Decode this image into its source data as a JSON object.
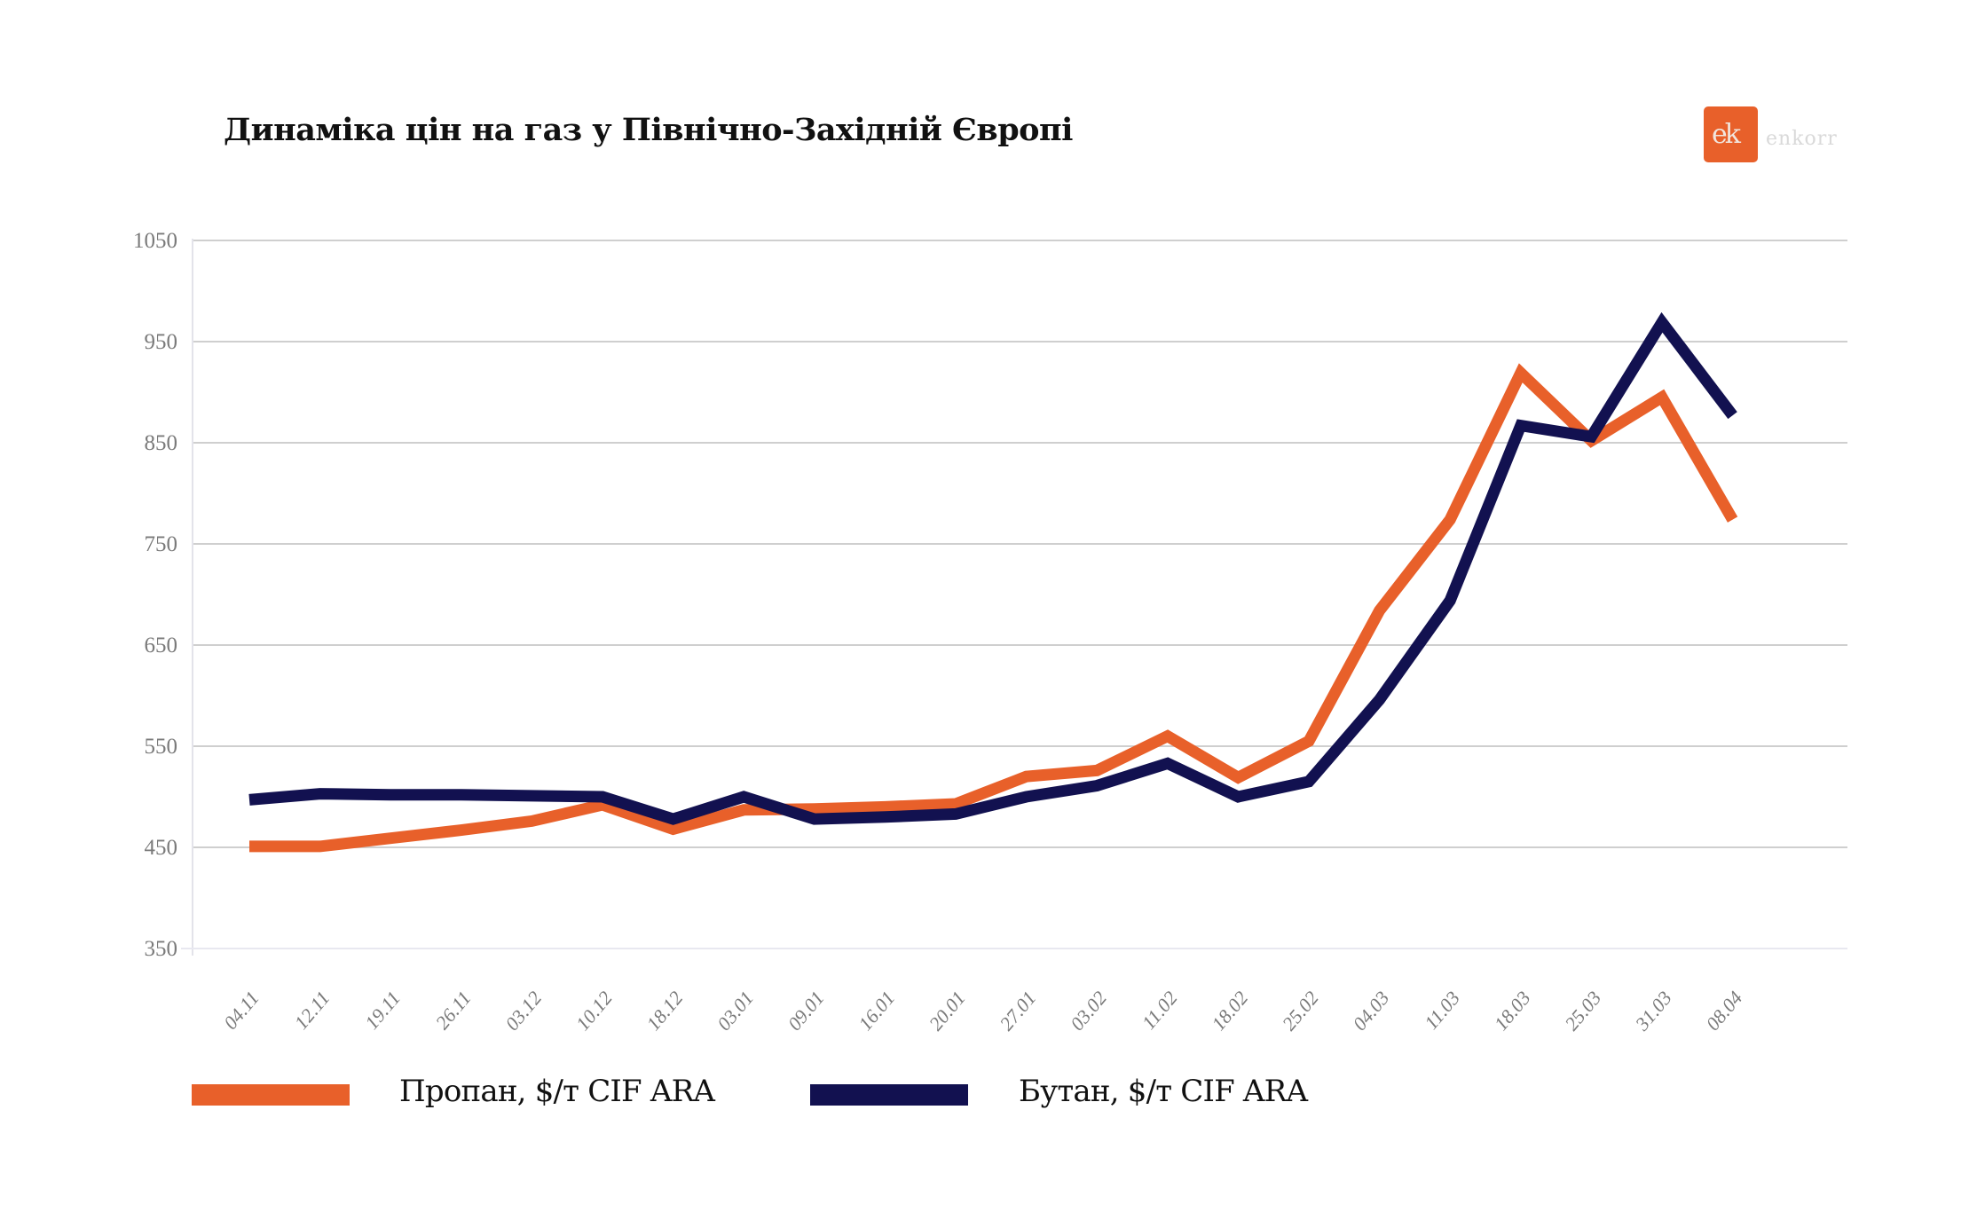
{
  "header": {
    "title": "Динаміка цін на газ у Північно-Західній Європі",
    "logo_mark": "ek",
    "logo_text": "enkorr",
    "logo_color": "#e8602a"
  },
  "chart_data": {
    "type": "line",
    "title": "Динаміка цін на газ у Північно-Західній Європі",
    "xlabel": "",
    "ylabel": "",
    "ylim": [
      350,
      1050
    ],
    "yticks": [
      350,
      450,
      550,
      650,
      750,
      850,
      950,
      1050
    ],
    "grid": true,
    "legend_position": "bottom",
    "categories": [
      "04.11",
      "12.11",
      "19.11",
      "26.11",
      "03.12",
      "10.12",
      "18.12",
      "03.01",
      "09.01",
      "16.01",
      "20.01",
      "27.01",
      "03.02",
      "11.02",
      "18.02",
      "25.02",
      "04.03",
      "11.03",
      "18.03",
      "25.03",
      "31.03",
      "08.04"
    ],
    "series": [
      {
        "name": "Пропан, $/т CIF ARA",
        "color": "#e8602a",
        "values": [
          451,
          451,
          459,
          467,
          476,
          492,
          468,
          487,
          488,
          490,
          493,
          520,
          526,
          560,
          519,
          555,
          684,
          774,
          919,
          852,
          895,
          774
        ]
      },
      {
        "name": "Бутан, $/т CIF ARA",
        "color": "#121150",
        "values": [
          497,
          503,
          502,
          502,
          501,
          500,
          478,
          500,
          478,
          480,
          483,
          500,
          511,
          533,
          500,
          515,
          596,
          694,
          867,
          856,
          969,
          877
        ]
      }
    ]
  },
  "legend": {
    "items": [
      {
        "label": "Пропан, $/т CIF ARA",
        "color": "#e8602a"
      },
      {
        "label": "Бутан, $/т CIF ARA",
        "color": "#121150"
      }
    ]
  }
}
